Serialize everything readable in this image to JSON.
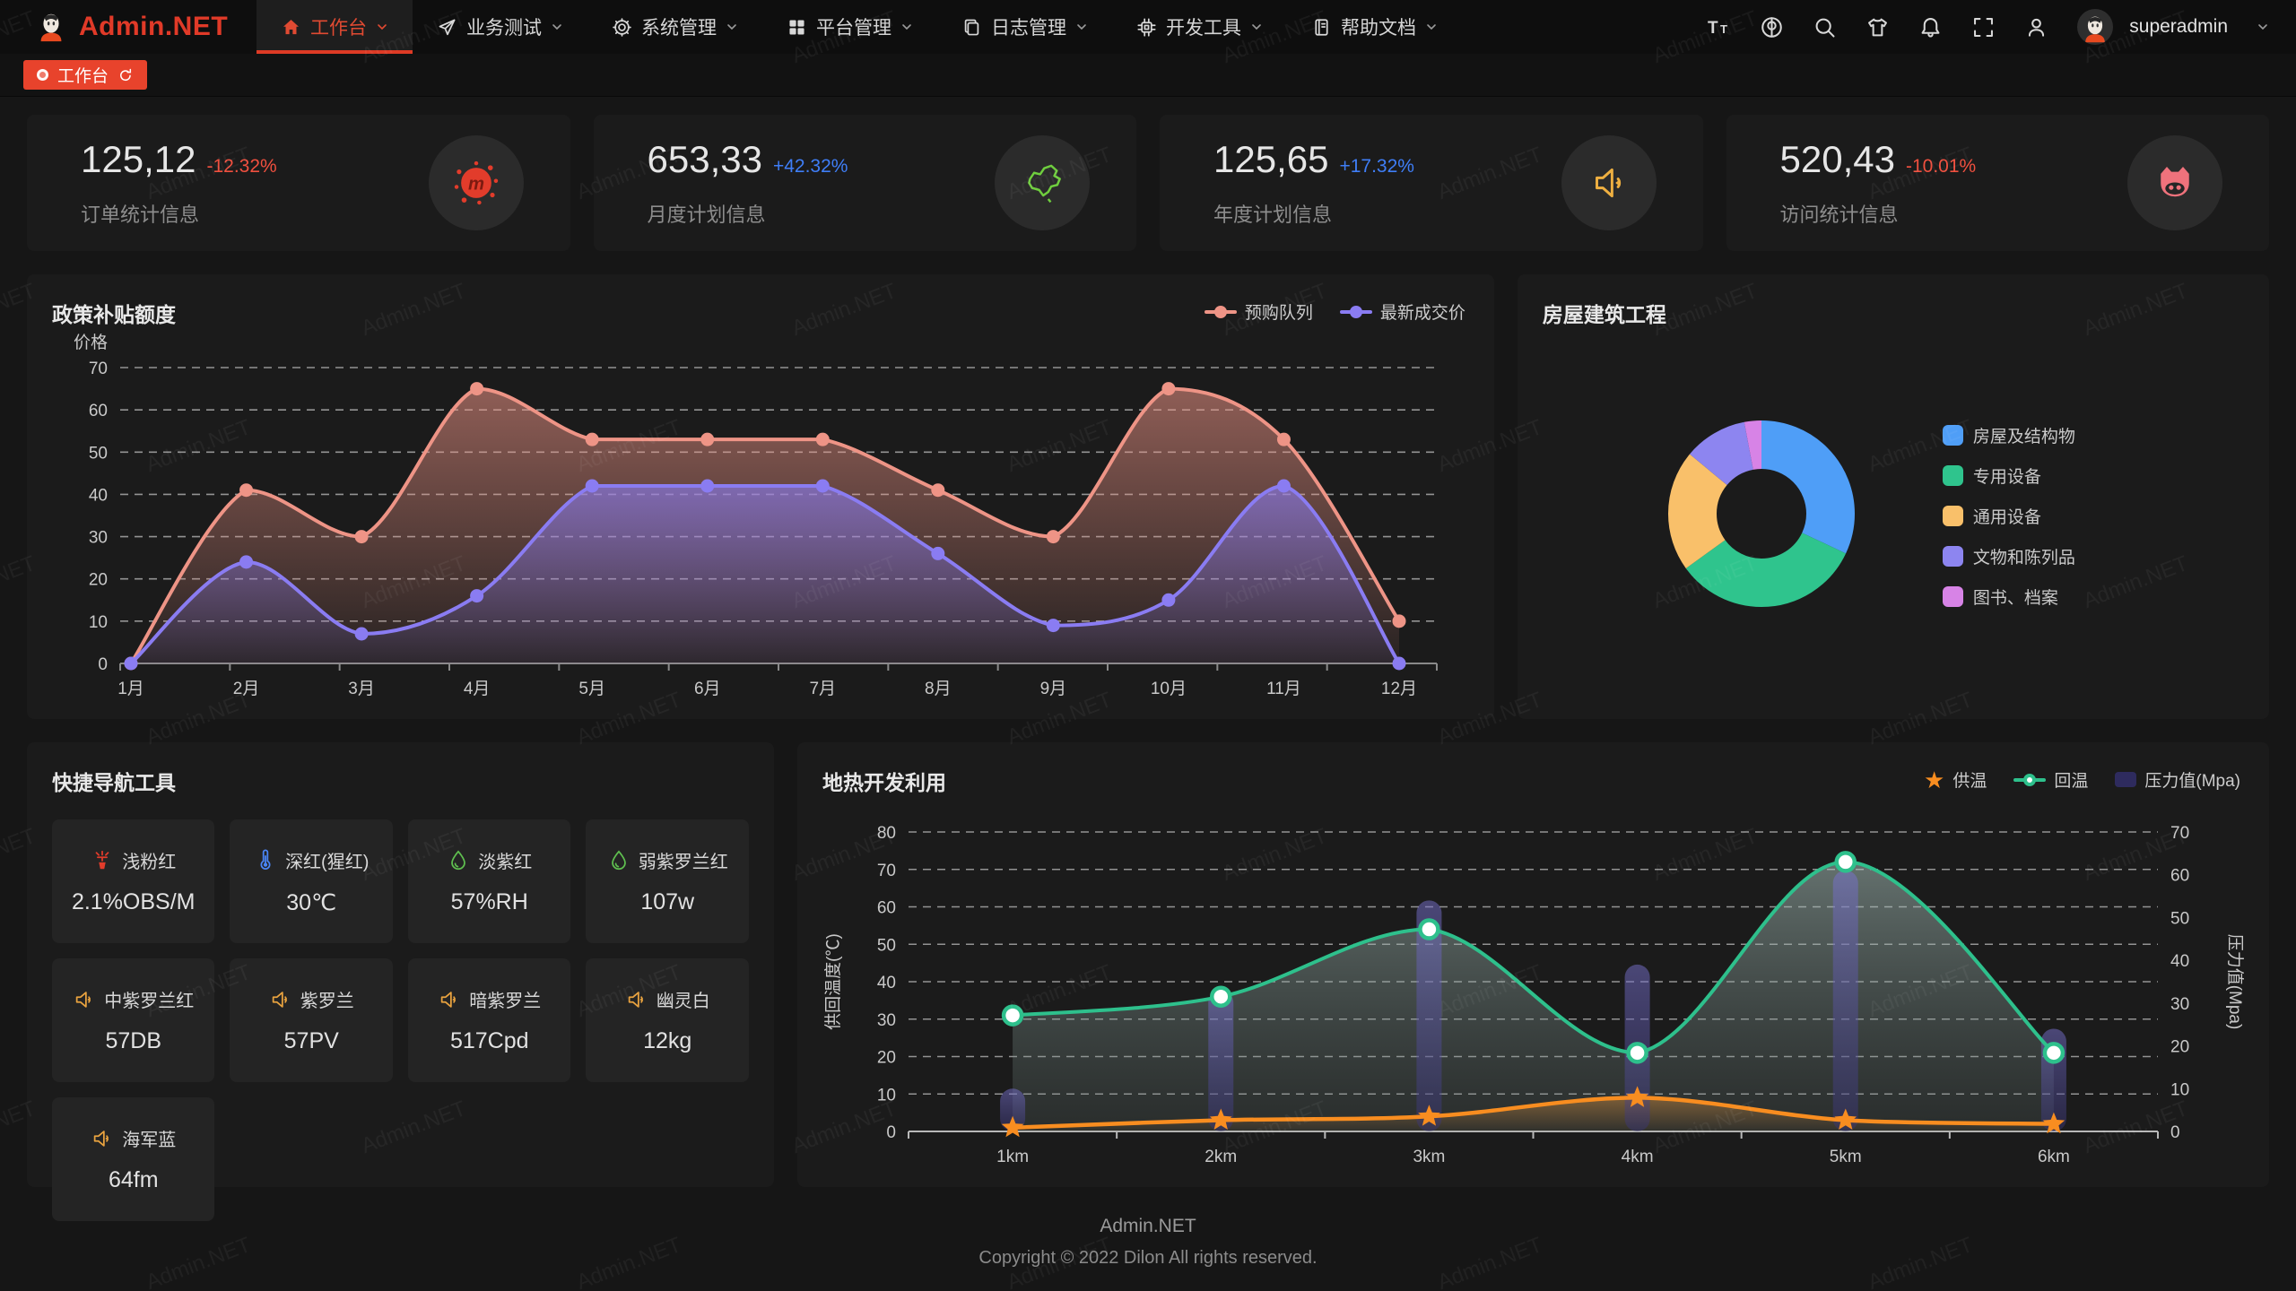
{
  "navbar": {
    "logo": "Admin.NET",
    "menu": [
      {
        "label": "工作台",
        "icon": "home-icon",
        "active": true
      },
      {
        "label": "业务测试",
        "icon": "send-icon",
        "active": false
      },
      {
        "label": "系统管理",
        "icon": "gear-icon",
        "active": false
      },
      {
        "label": "平台管理",
        "icon": "grid-icon",
        "active": false
      },
      {
        "label": "日志管理",
        "icon": "copy-icon",
        "active": false
      },
      {
        "label": "开发工具",
        "icon": "cpu-icon",
        "active": false
      },
      {
        "label": "帮助文档",
        "icon": "notebook-icon",
        "active": false
      }
    ],
    "tools": [
      "font-size-icon",
      "language-icon",
      "search-icon",
      "theme-shirt-icon",
      "bell-icon",
      "fullscreen-icon",
      "person-icon"
    ],
    "username": "superadmin"
  },
  "tabbar": {
    "active_tab": "工作台"
  },
  "colors": {
    "up": "#3f7ef7",
    "down": "#f0503f",
    "accent": "#e8432c"
  },
  "stats": [
    {
      "value": "125,12",
      "delta": "-12.32%",
      "trend": "down",
      "label": "订单统计信息",
      "icon": "meetup-splat-icon"
    },
    {
      "value": "653,33",
      "delta": "+42.32%",
      "trend": "up",
      "label": "月度计划信息",
      "icon": "china-map-icon"
    },
    {
      "value": "125,65",
      "delta": "+17.32%",
      "trend": "up",
      "label": "年度计划信息",
      "icon": "speaker-yellow-icon"
    },
    {
      "value": "520,43",
      "delta": "-10.01%",
      "trend": "down",
      "label": "访问统计信息",
      "icon": "cat-icon"
    }
  ],
  "chart_data": [
    {
      "type": "area",
      "title": "政策补贴额度",
      "ylabel": "价格",
      "ylim": [
        0,
        70
      ],
      "grid": "dashed",
      "legend_position": "top-right",
      "categories": [
        "1月",
        "2月",
        "3月",
        "4月",
        "5月",
        "6月",
        "7月",
        "8月",
        "9月",
        "10月",
        "11月",
        "12月"
      ],
      "series": [
        {
          "name": "预购队列",
          "color": "#ee9486",
          "values": [
            0,
            41,
            30,
            65,
            53,
            53,
            53,
            41,
            30,
            65,
            53,
            10
          ]
        },
        {
          "name": "最新成交价",
          "color": "#8a7cf2",
          "values": [
            0,
            24,
            7,
            16,
            42,
            42,
            42,
            26,
            9,
            15,
            42,
            0
          ]
        }
      ]
    },
    {
      "type": "pie",
      "title": "房屋建筑工程",
      "legend_position": "right",
      "slices": [
        {
          "label": "房屋及结构物",
          "value": 32,
          "color": "#4f9ef7"
        },
        {
          "label": "专用设备",
          "value": 33,
          "color": "#2fc48d"
        },
        {
          "label": "通用设备",
          "value": 21,
          "color": "#f9c06a"
        },
        {
          "label": "文物和陈列品",
          "value": 11,
          "color": "#8d85f0"
        },
        {
          "label": "图书、档案",
          "value": 3,
          "color": "#d783e6"
        }
      ]
    },
    {
      "type": "line+bar",
      "title": "地热开发利用",
      "categories": [
        "1km",
        "2km",
        "3km",
        "4km",
        "5km",
        "6km"
      ],
      "left_axis": {
        "label": "供回温度(℃)",
        "min": 0,
        "max": 80
      },
      "right_axis": {
        "label": "压力值(Mpa)",
        "min": 0,
        "max": 70
      },
      "legend_position": "top-right",
      "series": [
        {
          "name": "供温",
          "type": "line",
          "marker": "star",
          "axis": "left",
          "color": "#f88d20",
          "values": [
            1,
            3,
            4,
            9,
            3,
            2
          ]
        },
        {
          "name": "回温",
          "type": "line",
          "marker": "circle",
          "axis": "left",
          "color": "#2ec08c",
          "values": [
            31,
            36,
            54,
            21,
            72,
            21
          ]
        },
        {
          "name": "压力值(Mpa)",
          "type": "bar",
          "axis": "right",
          "color": "#5c56b2",
          "values": [
            10,
            33,
            54,
            39,
            61,
            24
          ]
        }
      ]
    }
  ],
  "quick_nav": {
    "title": "快捷导航工具",
    "items": [
      {
        "name": "浅粉红",
        "value": "2.1%OBS/M",
        "icon": "sprinkler-icon"
      },
      {
        "name": "深红(猩红)",
        "value": "30℃",
        "icon": "thermometer-icon"
      },
      {
        "name": "淡紫红",
        "value": "57%RH",
        "icon": "droplet-icon"
      },
      {
        "name": "弱紫罗兰红",
        "value": "107w",
        "icon": "droplet-icon"
      },
      {
        "name": "中紫罗兰红",
        "value": "57DB",
        "icon": "speaker-small-icon"
      },
      {
        "name": "紫罗兰",
        "value": "57PV",
        "icon": "speaker-small-icon"
      },
      {
        "name": "暗紫罗兰",
        "value": "517Cpd",
        "icon": "speaker-small-icon"
      },
      {
        "name": "幽灵白",
        "value": "12kg",
        "icon": "speaker-small-icon"
      },
      {
        "name": "海军蓝",
        "value": "64fm",
        "icon": "speaker-small-icon"
      }
    ]
  },
  "footer": {
    "line1": "Admin.NET",
    "line2": "Copyright © 2022 Dilon All rights reserved."
  },
  "watermark": "Admin.NET"
}
